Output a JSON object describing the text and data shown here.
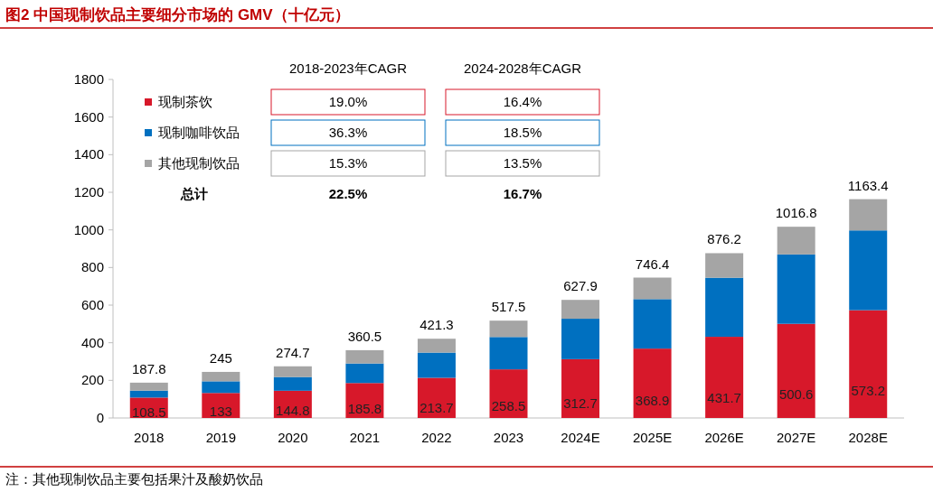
{
  "chart_data": {
    "type": "bar",
    "stacked": true,
    "title": "图2  中国现制饮品主要细分市场的 GMV（十亿元）",
    "categories": [
      "2018",
      "2019",
      "2020",
      "2021",
      "2022",
      "2023",
      "2024E",
      "2025E",
      "2026E",
      "2027E",
      "2028E"
    ],
    "series": [
      {
        "name": "现制茶饮",
        "color": "#d7182a",
        "values": [
          108.5,
          133,
          144.8,
          185.8,
          213.7,
          258.5,
          312.7,
          368.9,
          431.7,
          500.6,
          573.2
        ],
        "value_labels": [
          "108.5",
          "133",
          "144.8",
          "185.8",
          "213.7",
          "258.5",
          "312.7",
          "368.9",
          "431.7",
          "500.6",
          "573.2"
        ]
      },
      {
        "name": "现制咖啡饮品",
        "color": "#0070c0",
        "values": [
          37,
          62,
          73,
          104,
          134,
          172,
          215,
          263,
          314,
          369,
          424
        ]
      },
      {
        "name": "其他现制饮品",
        "color": "#a5a5a5",
        "values": [
          42.3,
          50,
          56.9,
          70.7,
          73.6,
          87,
          100.2,
          114.5,
          130.5,
          147.2,
          166.2
        ]
      }
    ],
    "totals": [
      "187.8",
      "245",
      "274.7",
      "360.5",
      "421.3",
      "517.5",
      "627.9",
      "746.4",
      "876.2",
      "1016.8",
      "1163.4"
    ],
    "ylim": [
      0,
      1800
    ],
    "yticks": [
      0,
      200,
      400,
      600,
      800,
      1000,
      1200,
      1400,
      1600,
      1800
    ],
    "legend": "top left",
    "grid": false,
    "annotations": [
      "2018-2023年CAGR",
      "2024-2028年CAGR",
      "19.0%",
      "16.4%",
      "36.3%",
      "18.5%",
      "15.3%",
      "13.5%",
      "总计",
      "22.5%",
      "16.7%",
      "注：其他现制饮品主要包括果汁及酸奶饮品"
    ]
  }
}
